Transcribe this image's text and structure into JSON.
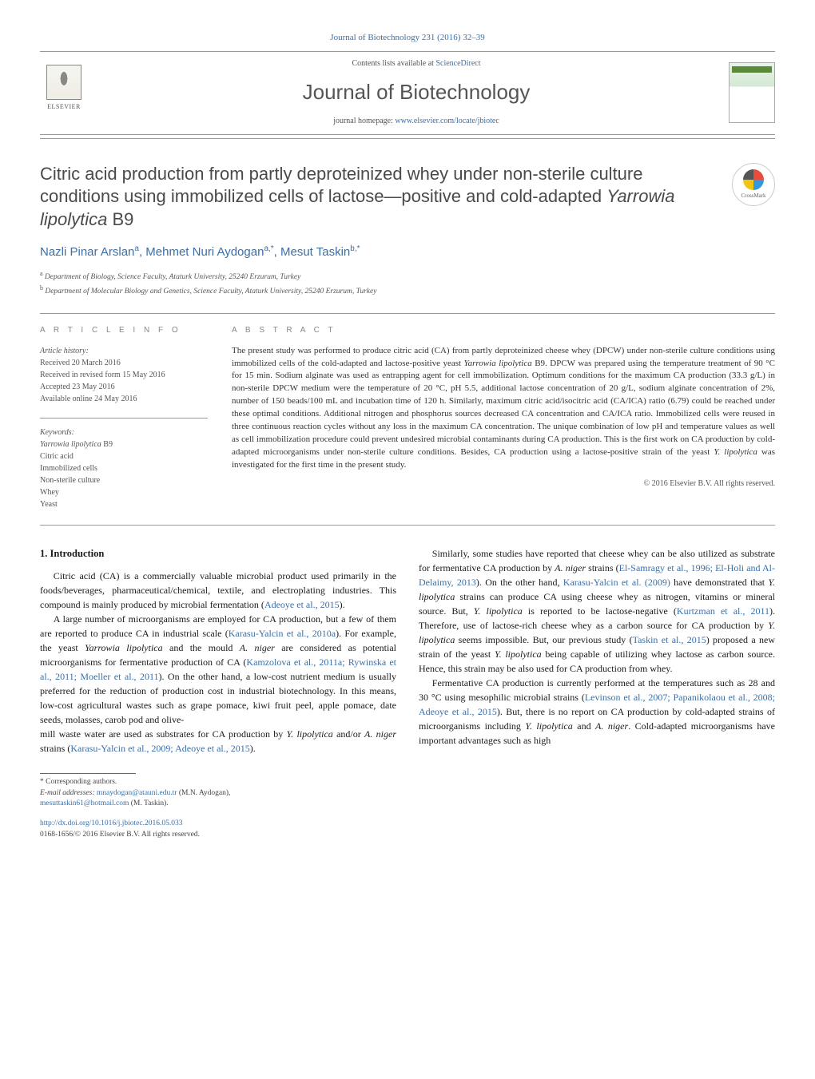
{
  "journal": {
    "header_link": "Journal of Biotechnology 231 (2016) 32–39",
    "contents_text": "Contents lists available at ",
    "contents_link": "ScienceDirect",
    "title": "Journal of Biotechnology",
    "homepage_label": "journal homepage: ",
    "homepage_url": "www.elsevier.com/locate/jbiotec",
    "publisher": "ELSEVIER",
    "cover_label": "BIOTECHNOLOGY"
  },
  "article": {
    "title_html": "Citric acid production from partly deproteinized whey under non-sterile culture conditions using immobilized cells of lactose—positive and cold-adapted <em>Yarrowia lipolytica</em> B9",
    "crossmark": "CrossMark"
  },
  "authors": {
    "line_html": "Nazli Pinar Arslan<sup>a</sup>, Mehmet Nuri Aydogan<sup>a,*</sup>, Mesut Taskin<sup>b,*</sup>"
  },
  "affiliations": [
    "<sup>a</sup> Department of Biology, Science Faculty, Ataturk University, 25240 Erzurum, Turkey",
    "<sup>b</sup> Department of Molecular Biology and Genetics, Science Faculty, Ataturk University, 25240 Erzurum, Turkey"
  ],
  "info": {
    "label": "A R T I C L E   I N F O",
    "history_head": "Article history:",
    "history": [
      "Received 20 March 2016",
      "Received in revised form 15 May 2016",
      "Accepted 23 May 2016",
      "Available online 24 May 2016"
    ],
    "keywords_head": "Keywords:",
    "keywords": [
      "<em>Yarrowia lipolytica</em> B9",
      "Citric acid",
      "Immobilized cells",
      "Non-sterile culture",
      "Whey",
      "Yeast"
    ]
  },
  "abstract": {
    "label": "A B S T R A C T",
    "text_html": "The present study was performed to produce citric acid (CA) from partly deproteinized cheese whey (DPCW) under non-sterile culture conditions using immobilized cells of the cold-adapted and lactose-positive yeast <em>Yarrowia lipolytica</em> B9. DPCW was prepared using the temperature treatment of 90 °C for 15 min. Sodium alginate was used as entrapping agent for cell immobilization. Optimum conditions for the maximum CA production (33.3 g/L) in non-sterile DPCW medium were the temperature of 20 °C, pH 5.5, additional lactose concentration of 20 g/L, sodium alginate concentration of 2%, number of 150 beads/100 mL and incubation time of 120 h. Similarly, maximum citric acid/isocitric acid (CA/ICA) ratio (6.79) could be reached under these optimal conditions. Additional nitrogen and phosphorus sources decreased CA concentration and CA/ICA ratio. Immobilized cells were reused in three continuous reaction cycles without any loss in the maximum CA concentration. The unique combination of low pH and temperature values as well as cell immobilization procedure could prevent undesired microbial contaminants during CA production. This is the first work on CA production by cold-adapted microorganisms under non-sterile culture conditions. Besides, CA production using a lactose-positive strain of the yeast <em>Y. lipolytica</em> was investigated for the first time in the present study.",
    "copyright": "© 2016 Elsevier B.V. All rights reserved."
  },
  "body": {
    "heading": "1. Introduction",
    "p1_html": "Citric acid (CA) is a commercially valuable microbial product used primarily in the foods/beverages, pharmaceutical/chemical, textile, and electroplating industries. This compound is mainly produced by microbial fermentation (<a class=\"ref\">Adeoye et al., 2015</a>).",
    "p2_html": "A large number of microorganisms are employed for CA production, but a few of them are reported to produce CA in industrial scale (<a class=\"ref\">Karasu-Yalcin et al., 2010a</a>). For example, the yeast <em>Yarrowia lipolytica</em> and the mould <em>A. niger</em> are considered as potential microorganisms for fermentative production of CA (<a class=\"ref\">Kamzolova et al., 2011a; Rywinska et al., 2011; Moeller et al., 2011</a>). On the other hand, a low-cost nutrient medium is usually preferred for the reduction of production cost in industrial biotechnology. In this means, low-cost agricultural wastes such as grape pomace, kiwi fruit peel, apple pomace, date seeds, molasses, carob pod and olive-",
    "p3_html": "mill waste water are used as substrates for CA production by <em>Y. lipolytica</em> and/or <em>A. niger</em> strains (<a class=\"ref\">Karasu-Yalcin et al., 2009; Adeoye et al., 2015</a>).",
    "p4_html": "Similarly, some studies have reported that cheese whey can be also utilized as substrate for fermentative CA production by <em>A. niger</em> strains (<a class=\"ref\">El-Samragy et al., 1996; El-Holi and Al-Delaimy, 2013</a>). On the other hand, <a class=\"ref\">Karasu-Yalcin et al. (2009)</a> have demonstrated that <em>Y. lipolytica</em> strains can produce CA using cheese whey as nitrogen, vitamins or mineral source. But, <em>Y. lipolytica</em> is reported to be lactose-negative (<a class=\"ref\">Kurtzman et al., 2011</a>). Therefore, use of lactose-rich cheese whey as a carbon source for CA production by <em>Y. lipolytica</em> seems impossible. But, our previous study (<a class=\"ref\">Taskin et al., 2015</a>) proposed a new strain of the yeast <em>Y. lipolytica</em> being capable of utilizing whey lactose as carbon source. Hence, this strain may be also used for CA production from whey.",
    "p5_html": "Fermentative CA production is currently performed at the temperatures such as 28 and 30 °C using mesophilic microbial strains (<a class=\"ref\">Levinson et al., 2007; Papanikolaou et al., 2008; Adeoye et al., 2015</a>). But, there is no report on CA production by cold-adapted strains of microorganisms including <em>Y. lipolytica</em> and <em>A. niger</em>. Cold-adapted microorganisms have important advantages such as high"
  },
  "footer": {
    "corr": "* Corresponding authors.",
    "email_label": "E-mail addresses: ",
    "email1": "mnaydogan@atauni.edu.tr",
    "email1_who": " (M.N. Aydogan),",
    "email2": "mesuttaskin61@hotmail.com",
    "email2_who": " (M. Taskin).",
    "doi": "http://dx.doi.org/10.1016/j.jbiotec.2016.05.033",
    "issn": "0168-1656/© 2016 Elsevier B.V. All rights reserved."
  },
  "colors": {
    "link": "#3a6fa8",
    "text": "#1a1a1a",
    "muted": "#555555",
    "rule": "#999999",
    "heading": "#4a4a4a"
  }
}
